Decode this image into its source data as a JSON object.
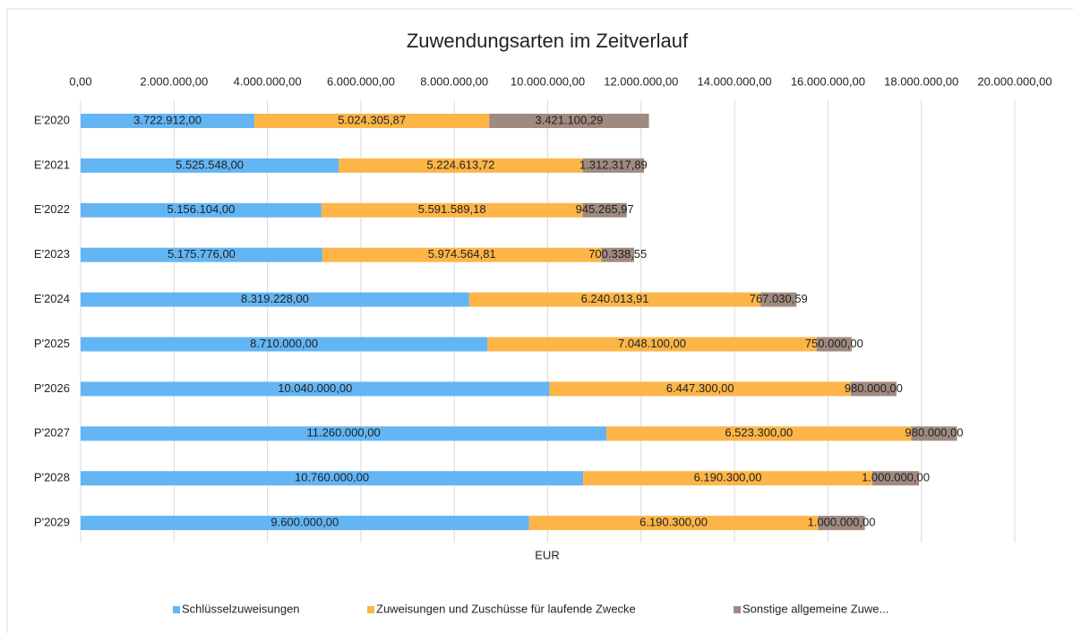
{
  "chart_data": {
    "type": "stacked-bar-horizontal",
    "title": "Zuwendungsarten im Zeitverlauf",
    "x_label": "EUR",
    "categories": [
      "E'2020",
      "E'2021",
      "E'2022",
      "E'2023",
      "E'2024",
      "P'2025",
      "P'2026",
      "P'2027",
      "P'2028",
      "P'2029"
    ],
    "series": [
      {
        "name": "Schlüsselzuweisungen",
        "color": "#63b5f4",
        "values": [
          3722912,
          5525548,
          5156104,
          5175776,
          8319228,
          8710000,
          10040000,
          11260000,
          10760000,
          9600000
        ],
        "value_labels": [
          "3.722.912,00",
          "5.525.548,00",
          "5.156.104,00",
          "5.175.776,00",
          "8.319.228,00",
          "8.710.000,00",
          "10.040.000,00",
          "11.260.000,00",
          "10.760.000,00",
          "9.600.000,00"
        ]
      },
      {
        "name": "Zuweisungen und Zuschüsse für laufende Zwecke",
        "color": "#fdb548",
        "values": [
          5024305.87,
          5224613.72,
          5591589.18,
          5974564.81,
          6240013.91,
          7048100,
          6447300,
          6523300,
          6190300,
          6190300
        ],
        "value_labels": [
          "5.024.305,87",
          "5.224.613,72",
          "5.591.589,18",
          "5.974.564,81",
          "6.240.013,91",
          "7.048.100,00",
          "6.447.300,00",
          "6.523.300,00",
          "6.190.300,00",
          "6.190.300,00"
        ]
      },
      {
        "name": "Sonstige allgemeine Zuwe...",
        "color": "#a08a80",
        "values": [
          3421100.29,
          1312317.89,
          945265.97,
          700338.55,
          767030.59,
          750000,
          980000,
          980000,
          1000000,
          1000000
        ],
        "value_labels": [
          "3.421.100,29",
          "1.312.317,89",
          "945.265,97",
          "700.338,55",
          "767.030,59",
          "750.000,00",
          "980.000,00",
          "980.000,00",
          "1.000.000,00",
          "1.000.000,00"
        ]
      }
    ],
    "xlim": [
      0,
      20000000
    ],
    "xticks": [
      {
        "value": 0,
        "label": "0,00"
      },
      {
        "value": 2000000,
        "label": "2.000.000,00"
      },
      {
        "value": 4000000,
        "label": "4.000.000,00"
      },
      {
        "value": 6000000,
        "label": "6.000.000,00"
      },
      {
        "value": 8000000,
        "label": "8.000.000,00"
      },
      {
        "value": 10000000,
        "label": "10.000.000,00"
      },
      {
        "value": 12000000,
        "label": "12.000.000,00"
      },
      {
        "value": 14000000,
        "label": "14.000.000,00"
      },
      {
        "value": 16000000,
        "label": "16.000.000,00"
      },
      {
        "value": 18000000,
        "label": "18.000.000,00"
      },
      {
        "value": 20000000,
        "label": "20.000.000,00"
      }
    ],
    "grid": true,
    "legend": "bottom"
  }
}
